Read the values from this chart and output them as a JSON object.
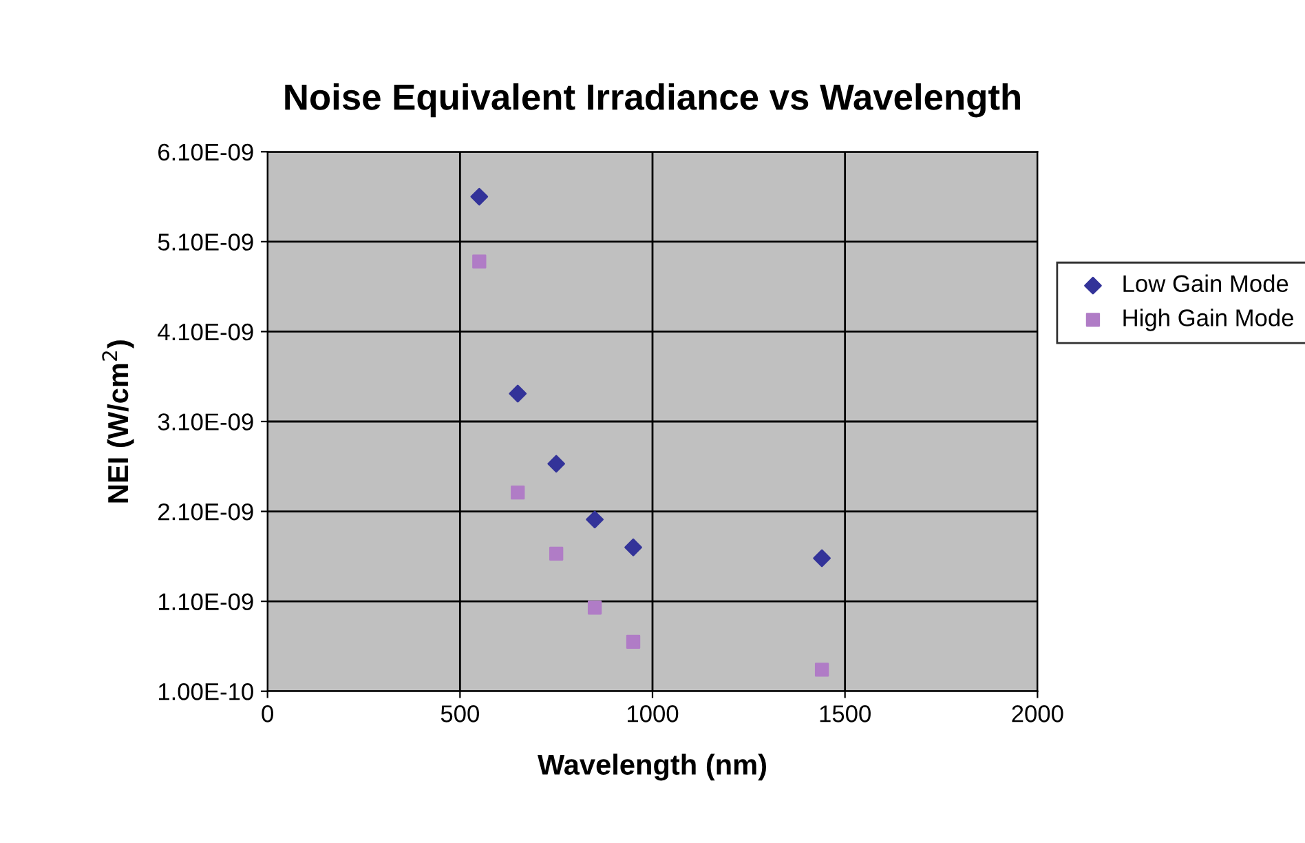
{
  "chart_data": {
    "type": "scatter",
    "title": "Noise Equivalent Irradiance vs Wavelength",
    "xlabel": "Wavelength (nm)",
    "ylabel": "NEI (W/cm$^{2}$)",
    "series": [
      {
        "name": "Low Gain Mode",
        "color": "#333399",
        "marker": "diamond",
        "x": [
          550,
          650,
          750,
          850,
          950,
          1440
        ],
        "values": [
          5.6e-09,
          3.41e-09,
          2.63e-09,
          2.01e-09,
          1.7e-09,
          1.58e-09
        ]
      },
      {
        "name": "High Gain Mode",
        "color": "#b07cc6",
        "marker": "square",
        "x": [
          550,
          650,
          750,
          850,
          950,
          1440
        ],
        "values": [
          4.88e-09,
          2.31e-09,
          1.63e-09,
          1.03e-09,
          6.5e-10,
          3.4e-10
        ]
      }
    ],
    "xlim": [
      0,
      2000
    ],
    "xticks": [
      0,
      500,
      1000,
      1500,
      2000
    ],
    "ylim": [
      1e-10,
      6.1e-09
    ],
    "yticks": [
      {
        "value": 1e-10,
        "label": "1.00E-10"
      },
      {
        "value": 1.1e-09,
        "label": "1.10E-09"
      },
      {
        "value": 2.1e-09,
        "label": "2.10E-09"
      },
      {
        "value": 3.1e-09,
        "label": "3.10E-09"
      },
      {
        "value": 4.1e-09,
        "label": "4.10E-09"
      },
      {
        "value": 5.1e-09,
        "label": "5.10E-09"
      },
      {
        "value": 6.1e-09,
        "label": "6.10E-09"
      }
    ],
    "grid": true,
    "legend": "right"
  }
}
